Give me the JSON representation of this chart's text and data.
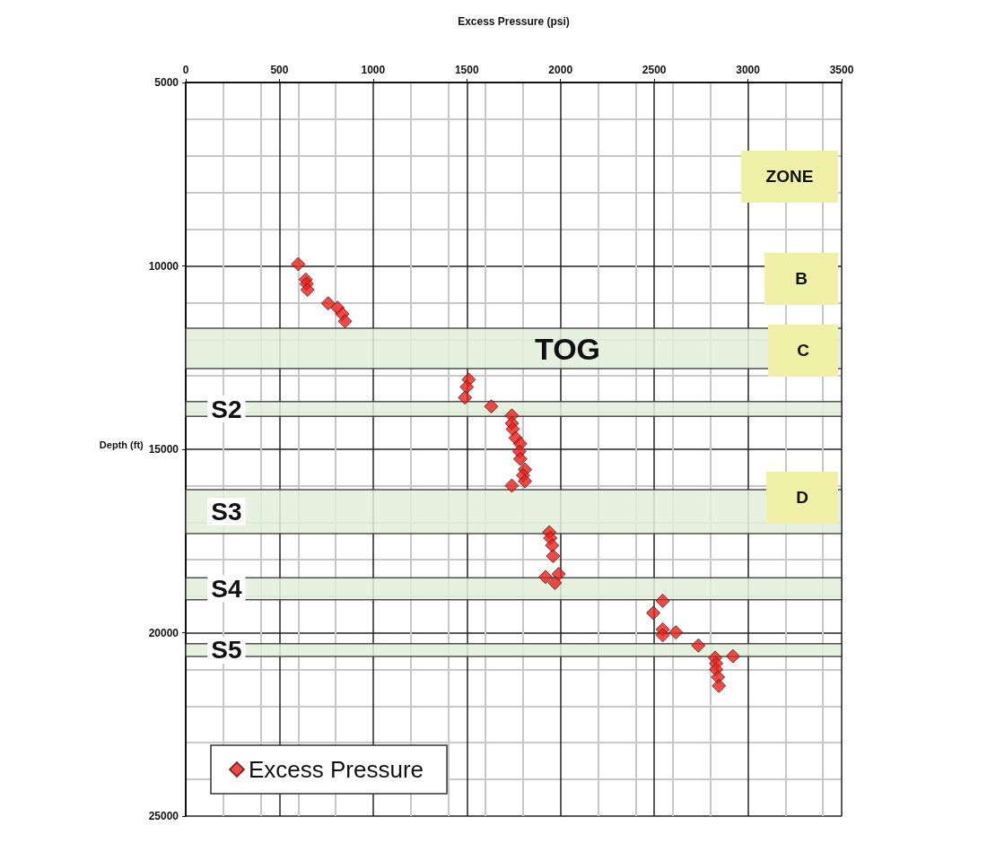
{
  "chart_data": {
    "type": "scatter",
    "xlabel": "Excess Pressure (psi)",
    "ylabel": "Depth (ft)",
    "xlim": [
      0,
      3500
    ],
    "xticks": [
      0,
      500,
      1000,
      1500,
      2000,
      2500,
      3000,
      3500
    ],
    "ylim": [
      25000,
      5000
    ],
    "yticks": [
      5000,
      10000,
      15000,
      20000,
      25000
    ],
    "grid": true,
    "legend": "bottom left",
    "marker": "diamond",
    "series": [
      {
        "name": "Excess Pressure",
        "color": "#e8201c",
        "x": [
          600,
          640,
          645,
          650,
          760,
          810,
          835,
          850,
          1510,
          1500,
          1490,
          1630,
          1740,
          1740,
          1745,
          1760,
          1785,
          1780,
          1785,
          1810,
          1800,
          1810,
          1740,
          1940,
          1945,
          1955,
          1960,
          1920,
          1990,
          1970,
          2545,
          2495,
          2545,
          2545,
          2615,
          2735,
          2920,
          2825,
          2830,
          2830,
          2840,
          2845
        ],
        "values": [
          9950,
          10370,
          10490,
          10650,
          11020,
          11140,
          11310,
          11510,
          13100,
          13300,
          13590,
          13830,
          14080,
          14290,
          14450,
          14690,
          14850,
          15060,
          15260,
          15550,
          15710,
          15870,
          15990,
          17260,
          17420,
          17620,
          17910,
          18480,
          18400,
          18640,
          19130,
          19460,
          19910,
          20070,
          19990,
          20350,
          20640,
          20680,
          20840,
          21000,
          21210,
          21450
        ]
      }
    ],
    "bands": [
      {
        "axis": "y",
        "from": 11700,
        "to": 12800,
        "label": "TOG",
        "color": "#e2f0d9"
      },
      {
        "axis": "y",
        "from": 13700,
        "to": 14100,
        "label": "S2",
        "color": "#e2f0d9"
      },
      {
        "axis": "y",
        "from": 16100,
        "to": 17300,
        "label": "S3",
        "color": "#e2f0d9"
      },
      {
        "axis": "y",
        "from": 18500,
        "to": 19100,
        "label": "S4",
        "color": "#e2f0d9"
      },
      {
        "axis": "y",
        "from": 20300,
        "to": 20650,
        "label": "S5",
        "color": "#e2f0d9"
      }
    ],
    "annotations": [
      "ZONE",
      "B",
      "C",
      "D"
    ]
  }
}
